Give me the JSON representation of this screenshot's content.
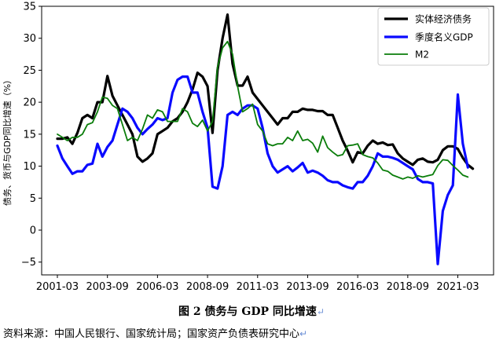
{
  "figure": {
    "caption": "图 2 债务与 GDP 同比增速",
    "source": "资料来源：中国人民银行、国家统计局；国家资产负债表研究中心",
    "paragraph_mark": "↵"
  },
  "chart_data": {
    "type": "line",
    "title": "",
    "xlabel": "",
    "ylabel": "债务、货币与GDP同比增速（%）",
    "ylim": [
      -7,
      35
    ],
    "yticks": [
      -5,
      0,
      5,
      10,
      15,
      20,
      25,
      30,
      35
    ],
    "x_start": "2001-03",
    "x_step_months": 3,
    "xticks": [
      "2001-03",
      "2003-09",
      "2006-03",
      "2008-09",
      "2011-03",
      "2013-09",
      "2016-03",
      "2018-09",
      "2021-03"
    ],
    "grid": false,
    "legend_position": "top-right",
    "x": [
      "2001-03",
      "2001-06",
      "2001-09",
      "2001-12",
      "2002-03",
      "2002-06",
      "2002-09",
      "2002-12",
      "2003-03",
      "2003-06",
      "2003-09",
      "2003-12",
      "2004-03",
      "2004-06",
      "2004-09",
      "2004-12",
      "2005-03",
      "2005-06",
      "2005-09",
      "2005-12",
      "2006-03",
      "2006-06",
      "2006-09",
      "2006-12",
      "2007-03",
      "2007-06",
      "2007-09",
      "2007-12",
      "2008-03",
      "2008-06",
      "2008-09",
      "2008-12",
      "2009-03",
      "2009-06",
      "2009-09",
      "2009-12",
      "2010-03",
      "2010-06",
      "2010-09",
      "2010-12",
      "2011-03",
      "2011-06",
      "2011-09",
      "2011-12",
      "2012-03",
      "2012-06",
      "2012-09",
      "2012-12",
      "2013-03",
      "2013-06",
      "2013-09",
      "2013-12",
      "2014-03",
      "2014-06",
      "2014-09",
      "2014-12",
      "2015-03",
      "2015-06",
      "2015-09",
      "2015-12",
      "2016-03",
      "2016-06",
      "2016-09",
      "2016-12",
      "2017-03",
      "2017-06",
      "2017-09",
      "2017-12",
      "2018-03",
      "2018-06",
      "2018-09",
      "2018-12",
      "2019-03",
      "2019-06",
      "2019-09",
      "2019-12",
      "2020-03",
      "2020-06",
      "2020-09",
      "2020-12",
      "2021-03",
      "2021-06",
      "2021-09",
      "2021-12",
      "2022-03"
    ],
    "series": [
      {
        "name": "实体经济债务",
        "color": "#000000",
        "values": [
          14.3,
          14.3,
          14.5,
          13.5,
          15.2,
          17.5,
          18.0,
          17.5,
          20.0,
          20.0,
          24.1,
          21.0,
          19.5,
          18.0,
          16.5,
          15.0,
          11.5,
          10.7,
          11.2,
          12.0,
          15.0,
          15.5,
          16.0,
          17.0,
          17.5,
          18.5,
          20.0,
          22.0,
          24.6,
          24.0,
          22.5,
          15.2,
          25.0,
          30.0,
          33.7,
          26.0,
          22.6,
          22.6,
          24.0,
          21.5,
          20.5,
          19.5,
          18.5,
          17.5,
          16.5,
          17.5,
          17.5,
          18.5,
          18.5,
          19.0,
          18.8,
          18.8,
          18.6,
          18.6,
          18.0,
          18.0,
          16.0,
          14.0,
          12.4,
          10.6,
          12.2,
          12.0,
          13.2,
          14.0,
          13.5,
          13.7,
          13.3,
          13.4,
          12.0,
          11.2,
          10.7,
          10.2,
          11.0,
          11.2,
          10.7,
          10.6,
          11.0,
          12.5,
          13.1,
          13.1,
          12.7,
          11.3,
          10.2,
          9.6,
          null
        ]
      },
      {
        "name": "季度名义GDP",
        "color": "#0a0aff",
        "values": [
          13.2,
          11.2,
          10.0,
          8.8,
          9.2,
          9.2,
          10.2,
          10.4,
          13.5,
          11.5,
          13.0,
          14.0,
          16.5,
          19.0,
          18.5,
          17.5,
          16.0,
          15.0,
          15.8,
          16.5,
          17.5,
          17.2,
          17.5,
          21.5,
          23.5,
          24.0,
          24.0,
          21.5,
          21.5,
          18.5,
          16.0,
          6.8,
          6.5,
          10.0,
          18.0,
          18.5,
          18.0,
          19.0,
          19.5,
          19.5,
          19.0,
          16.0,
          12.0,
          10.0,
          9.0,
          9.5,
          10.0,
          9.2,
          9.8,
          10.5,
          9.0,
          9.3,
          9.0,
          8.5,
          7.8,
          7.5,
          7.5,
          7.0,
          6.7,
          6.5,
          7.5,
          7.5,
          8.5,
          10.0,
          12.0,
          11.5,
          11.5,
          11.3,
          11.0,
          10.5,
          10.0,
          9.5,
          8.0,
          7.5,
          7.5,
          7.3,
          -5.3,
          3.0,
          5.5,
          7.0,
          21.2,
          13.5,
          9.8,
          null,
          null
        ]
      },
      {
        "name": "M2",
        "color": "#0a7d0a",
        "values": [
          15.0,
          14.5,
          14.0,
          14.5,
          14.5,
          15.0,
          16.5,
          16.8,
          18.5,
          20.8,
          20.6,
          19.5,
          19.0,
          16.5,
          14.0,
          14.5,
          14.0,
          15.8,
          18.0,
          17.5,
          18.8,
          18.5,
          17.0,
          17.0,
          17.0,
          19.0,
          18.5,
          16.7,
          16.2,
          17.2,
          15.5,
          17.0,
          25.5,
          28.5,
          29.5,
          27.5,
          22.5,
          18.5,
          19.0,
          19.7,
          16.5,
          15.5,
          13.5,
          13.2,
          13.5,
          13.5,
          14.5,
          14.0,
          15.5,
          14.0,
          14.2,
          13.6,
          12.2,
          14.7,
          12.9,
          12.2,
          11.6,
          11.8,
          13.2,
          13.3,
          13.5,
          11.8,
          11.5,
          11.3,
          10.5,
          9.4,
          9.2,
          8.6,
          8.3,
          8.0,
          8.3,
          8.1,
          8.5,
          8.3,
          8.5,
          8.7,
          10.1,
          11.0,
          10.9,
          10.1,
          9.4,
          8.6,
          8.3,
          null,
          null
        ]
      }
    ]
  }
}
